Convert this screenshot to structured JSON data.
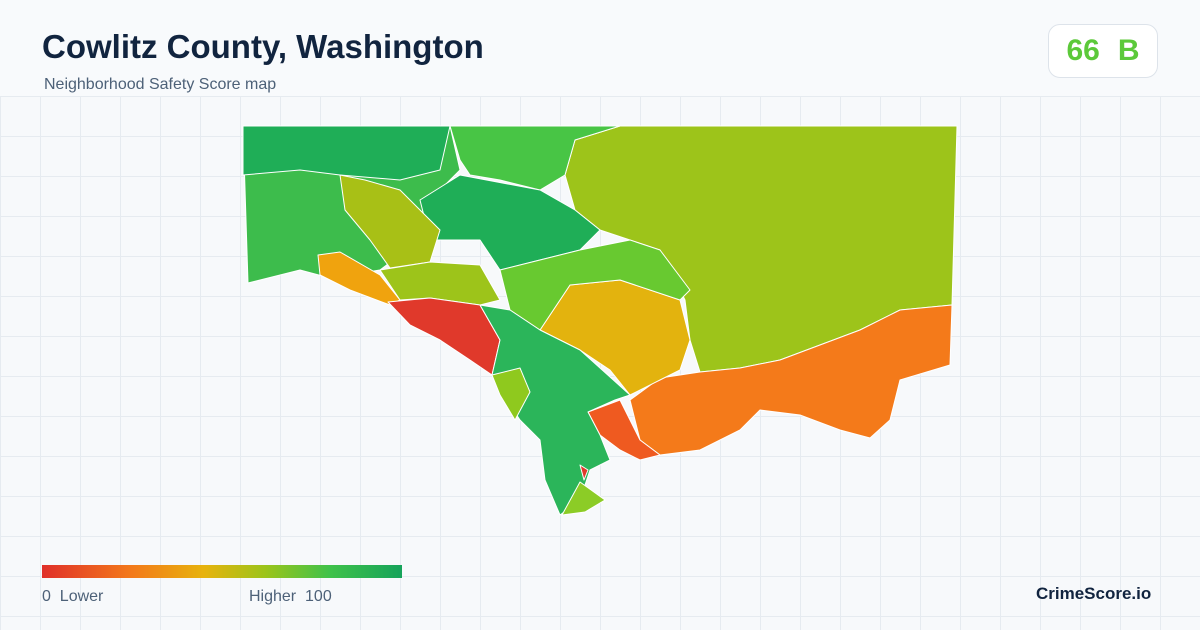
{
  "header": {
    "title": "Cowlitz County, Washington",
    "subtitle": "Neighborhood Safety Score map"
  },
  "score": {
    "value": 66,
    "grade": "B"
  },
  "legend": {
    "min": 0,
    "min_label": "Lower",
    "max_label": "Higher",
    "max": 100
  },
  "brand": "CrimeScore.io"
}
